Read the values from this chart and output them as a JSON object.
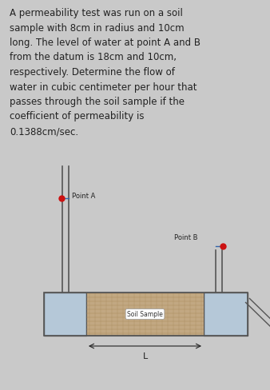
{
  "bg_color": "#c9c9c9",
  "text_color": "#222222",
  "problem_text": "A permeability test was run on a soil\nsample with 8cm in radius and 10cm\nlong. The level of water at point A and B\nfrom the datum is 18cm and 10cm,\nrespectively. Determine the flow of\nwater in cubic centimeter per hour that\npasses through the soil sample if the\ncoefficient of permeability is\n0.1388cm/sec.",
  "soil_color": "#c2a882",
  "soil_label": "Soil Sample",
  "box_color": "#b5c8d8",
  "box_edge_color": "#555555",
  "pipe_color": "#555555",
  "point_a_label": "Point A",
  "point_b_label": "Point B",
  "L_label": "L",
  "dot_color": "#cc1111",
  "fig_bg": "#c9c9c9",
  "text_fontsize": 8.5,
  "label_fontsize": 6.0
}
